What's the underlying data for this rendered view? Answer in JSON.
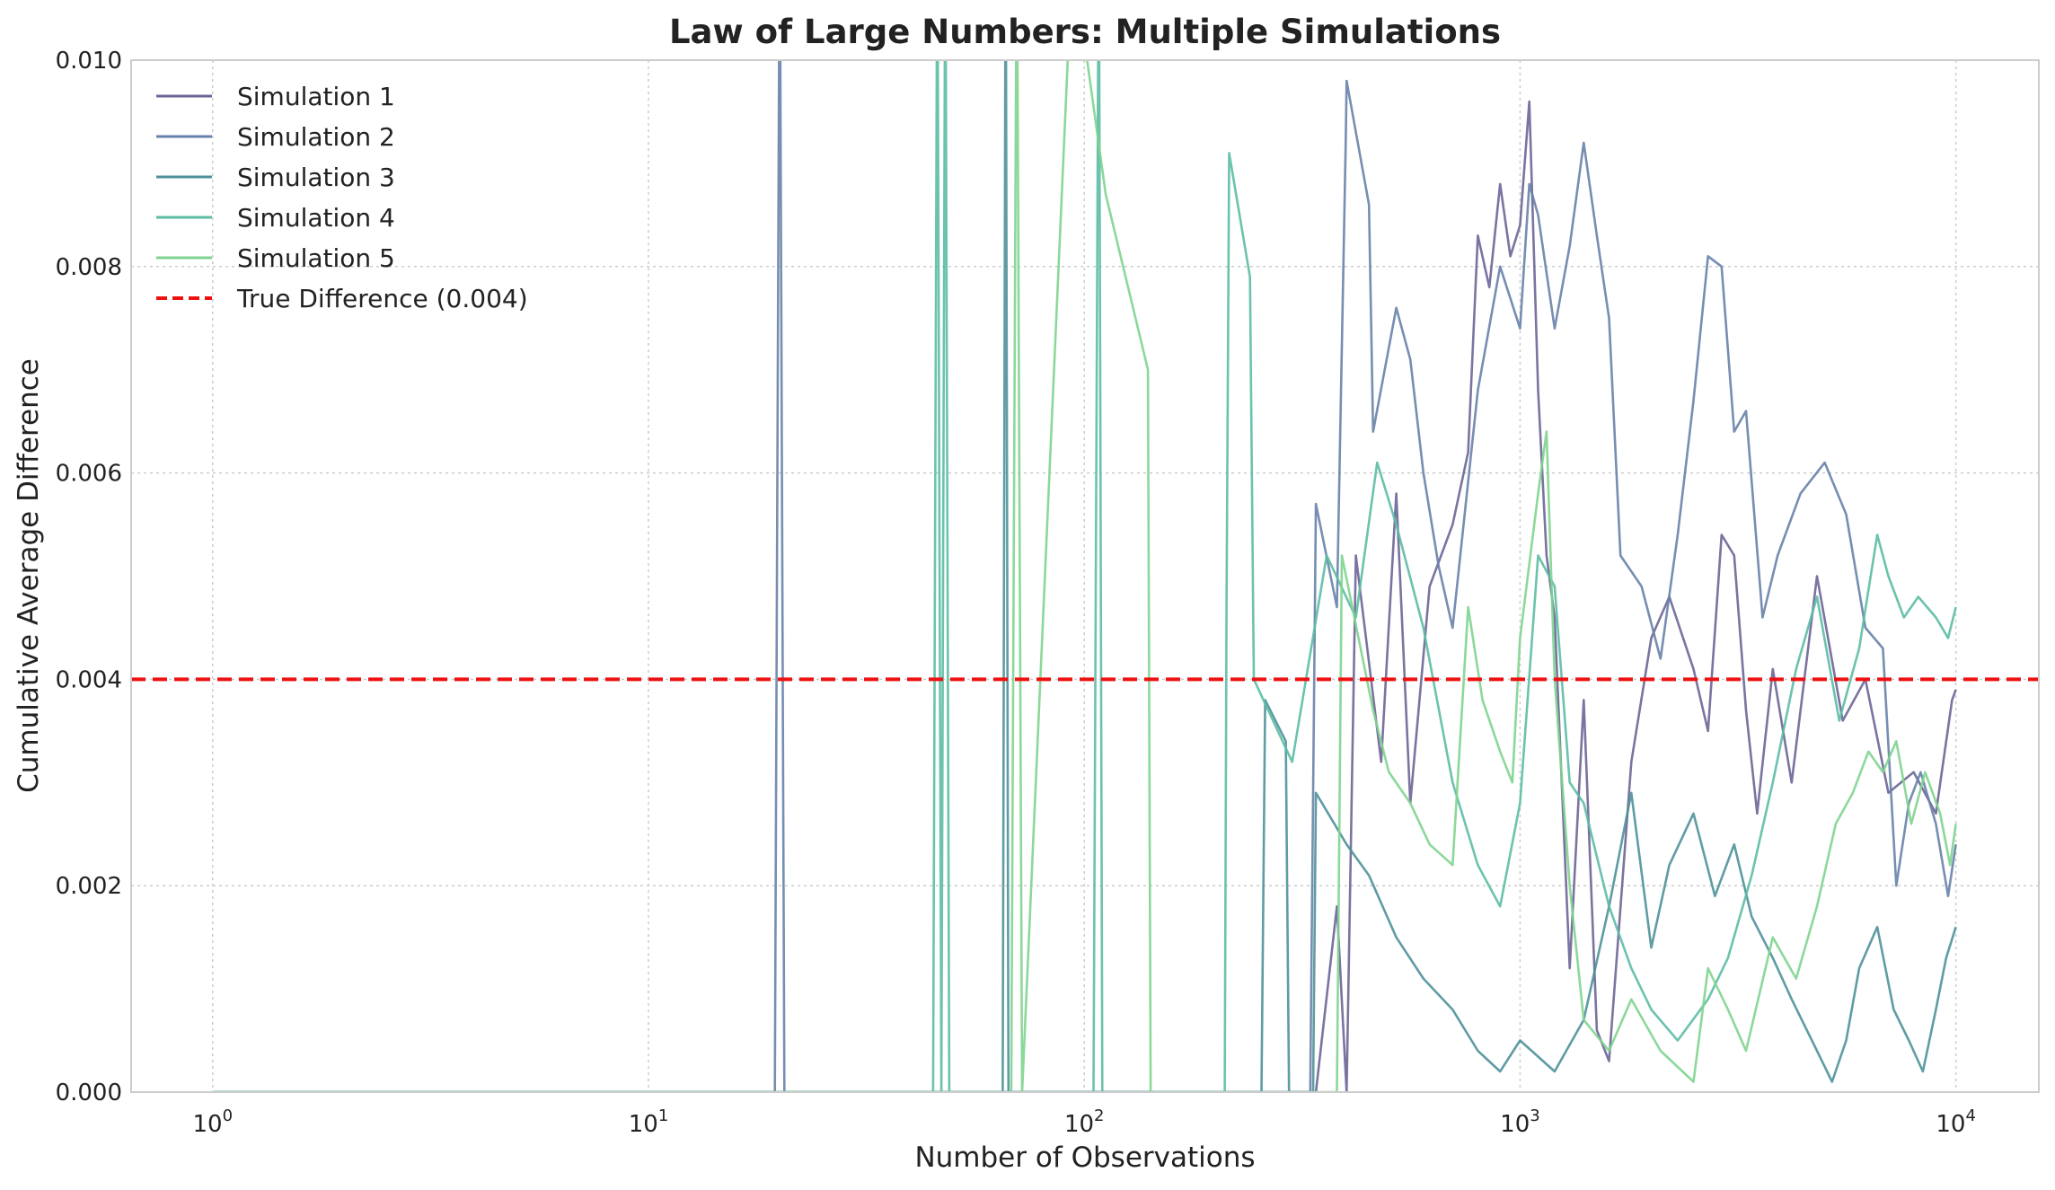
{
  "chart_data": {
    "type": "line",
    "title": "Law of Large Numbers: Multiple Simulations",
    "xlabel": "Number of Observations",
    "ylabel": "Cumulative Average Difference",
    "xscale": "log",
    "xlim": [
      0.65,
      15500
    ],
    "ylim": [
      0.0,
      0.01
    ],
    "x_ticks": [
      {
        "value": 1,
        "base": "10",
        "exp": "0"
      },
      {
        "value": 10,
        "base": "10",
        "exp": "1"
      },
      {
        "value": 100,
        "base": "10",
        "exp": "2"
      },
      {
        "value": 1000,
        "base": "10",
        "exp": "3"
      },
      {
        "value": 10000,
        "base": "10",
        "exp": "4"
      }
    ],
    "y_ticks": [
      {
        "value": 0.0,
        "label": "0.000"
      },
      {
        "value": 0.002,
        "label": "0.002"
      },
      {
        "value": 0.004,
        "label": "0.004"
      },
      {
        "value": 0.006,
        "label": "0.006"
      },
      {
        "value": 0.008,
        "label": "0.008"
      },
      {
        "value": 0.01,
        "label": "0.010"
      }
    ],
    "grid": true,
    "legend_position": "top-left",
    "reference_line": {
      "name": "True Difference (0.004)",
      "y": 0.004,
      "color": "#ee1111",
      "style": "dashed"
    },
    "series": [
      {
        "name": "Simulation 1",
        "color": "#6b6596",
        "points": [
          [
            1,
            0
          ],
          [
            340,
            0
          ],
          [
            380,
            0.0018
          ],
          [
            400,
            0
          ],
          [
            420,
            0.0052
          ],
          [
            480,
            0.0032
          ],
          [
            520,
            0.0058
          ],
          [
            560,
            0.0028
          ],
          [
            620,
            0.0049
          ],
          [
            700,
            0.0055
          ],
          [
            760,
            0.0062
          ],
          [
            800,
            0.0083
          ],
          [
            850,
            0.0078
          ],
          [
            900,
            0.0088
          ],
          [
            950,
            0.0081
          ],
          [
            1000,
            0.0084
          ],
          [
            1050,
            0.0096
          ],
          [
            1100,
            0.0068
          ],
          [
            1150,
            0.0052
          ],
          [
            1200,
            0.0046
          ],
          [
            1300,
            0.0012
          ],
          [
            1400,
            0.0038
          ],
          [
            1500,
            0.0006
          ],
          [
            1600,
            0.0003
          ],
          [
            1800,
            0.0032
          ],
          [
            2000,
            0.0044
          ],
          [
            2200,
            0.0048
          ],
          [
            2500,
            0.0041
          ],
          [
            2700,
            0.0035
          ],
          [
            2900,
            0.0054
          ],
          [
            3100,
            0.0052
          ],
          [
            3300,
            0.0037
          ],
          [
            3500,
            0.0027
          ],
          [
            3800,
            0.0041
          ],
          [
            4200,
            0.003
          ],
          [
            4800,
            0.005
          ],
          [
            5500,
            0.0036
          ],
          [
            6200,
            0.004
          ],
          [
            7000,
            0.0029
          ],
          [
            8000,
            0.0031
          ],
          [
            9000,
            0.0027
          ],
          [
            9800,
            0.0038
          ],
          [
            10000,
            0.0039
          ]
        ]
      },
      {
        "name": "Simulation 2",
        "color": "#6782a8",
        "points": [
          [
            1,
            0
          ],
          [
            19.5,
            0
          ],
          [
            20,
            0.0115
          ],
          [
            20.5,
            0
          ],
          [
            330,
            0
          ],
          [
            340,
            0.0057
          ],
          [
            380,
            0.0047
          ],
          [
            398,
            0.0092
          ],
          [
            400,
            0.0098
          ],
          [
            450,
            0.0086
          ],
          [
            460,
            0.0064
          ],
          [
            520,
            0.0076
          ],
          [
            560,
            0.0071
          ],
          [
            600,
            0.006
          ],
          [
            650,
            0.0051
          ],
          [
            700,
            0.0045
          ],
          [
            800,
            0.0068
          ],
          [
            900,
            0.008
          ],
          [
            1000,
            0.0074
          ],
          [
            1050,
            0.0088
          ],
          [
            1100,
            0.0085
          ],
          [
            1200,
            0.0074
          ],
          [
            1300,
            0.0082
          ],
          [
            1400,
            0.0092
          ],
          [
            1500,
            0.0083
          ],
          [
            1600,
            0.0075
          ],
          [
            1700,
            0.0052
          ],
          [
            1900,
            0.0049
          ],
          [
            2100,
            0.0042
          ],
          [
            2300,
            0.0054
          ],
          [
            2500,
            0.0067
          ],
          [
            2700,
            0.0081
          ],
          [
            2900,
            0.008
          ],
          [
            3100,
            0.0064
          ],
          [
            3300,
            0.0066
          ],
          [
            3600,
            0.0046
          ],
          [
            3900,
            0.0052
          ],
          [
            4400,
            0.0058
          ],
          [
            5000,
            0.0061
          ],
          [
            5600,
            0.0056
          ],
          [
            6200,
            0.0045
          ],
          [
            6800,
            0.0043
          ],
          [
            7300,
            0.002
          ],
          [
            7800,
            0.0028
          ],
          [
            8300,
            0.0031
          ],
          [
            9000,
            0.0026
          ],
          [
            9600,
            0.0019
          ],
          [
            10000,
            0.0024
          ]
        ]
      },
      {
        "name": "Simulation 3",
        "color": "#4e9199",
        "points": [
          [
            1,
            0
          ],
          [
            65,
            0
          ],
          [
            66,
            0.0115
          ],
          [
            67,
            0
          ],
          [
            255,
            0
          ],
          [
            260,
            0.0038
          ],
          [
            290,
            0.0034
          ],
          [
            295,
            0
          ],
          [
            335,
            0
          ],
          [
            340,
            0.0029
          ],
          [
            400,
            0.0024
          ],
          [
            450,
            0.0021
          ],
          [
            520,
            0.0015
          ],
          [
            600,
            0.0011
          ],
          [
            700,
            0.0008
          ],
          [
            800,
            0.0004
          ],
          [
            900,
            0.0002
          ],
          [
            1000,
            0.0005
          ],
          [
            1200,
            0.0002
          ],
          [
            1400,
            0.0007
          ],
          [
            1600,
            0.0018
          ],
          [
            1800,
            0.0029
          ],
          [
            2000,
            0.0014
          ],
          [
            2200,
            0.0022
          ],
          [
            2500,
            0.0027
          ],
          [
            2800,
            0.0019
          ],
          [
            3100,
            0.0024
          ],
          [
            3400,
            0.0017
          ],
          [
            3800,
            0.0013
          ],
          [
            4200,
            0.0009
          ],
          [
            4800,
            0.0004
          ],
          [
            5200,
            0.0001
          ],
          [
            5600,
            0.0005
          ],
          [
            6000,
            0.0012
          ],
          [
            6600,
            0.0016
          ],
          [
            7200,
            0.0008
          ],
          [
            7800,
            0.0005
          ],
          [
            8400,
            0.0002
          ],
          [
            9000,
            0.0008
          ],
          [
            9500,
            0.0013
          ],
          [
            10000,
            0.0016
          ]
        ]
      },
      {
        "name": "Simulation 4",
        "color": "#5bbda4",
        "points": [
          [
            1,
            0
          ],
          [
            45,
            0
          ],
          [
            46,
            0.0115
          ],
          [
            47,
            0
          ],
          [
            48,
            0.0115
          ],
          [
            49,
            0
          ],
          [
            105,
            0
          ],
          [
            108,
            0.0115
          ],
          [
            110,
            0
          ],
          [
            210,
            0
          ],
          [
            212,
            0.0047
          ],
          [
            215,
            0.0091
          ],
          [
            240,
            0.0079
          ],
          [
            245,
            0.004
          ],
          [
            300,
            0.0032
          ],
          [
            360,
            0.0052
          ],
          [
            420,
            0.0046
          ],
          [
            470,
            0.0061
          ],
          [
            520,
            0.0055
          ],
          [
            600,
            0.0045
          ],
          [
            700,
            0.003
          ],
          [
            800,
            0.0022
          ],
          [
            900,
            0.0018
          ],
          [
            1000,
            0.0028
          ],
          [
            1100,
            0.0052
          ],
          [
            1200,
            0.0049
          ],
          [
            1300,
            0.003
          ],
          [
            1400,
            0.0028
          ],
          [
            1600,
            0.0018
          ],
          [
            1800,
            0.0012
          ],
          [
            2000,
            0.0008
          ],
          [
            2300,
            0.0005
          ],
          [
            2700,
            0.0009
          ],
          [
            3000,
            0.0013
          ],
          [
            3400,
            0.0021
          ],
          [
            3800,
            0.003
          ],
          [
            4300,
            0.0041
          ],
          [
            4800,
            0.0048
          ],
          [
            5400,
            0.0036
          ],
          [
            6000,
            0.0043
          ],
          [
            6600,
            0.0054
          ],
          [
            7000,
            0.005
          ],
          [
            7600,
            0.0046
          ],
          [
            8200,
            0.0048
          ],
          [
            9000,
            0.0046
          ],
          [
            9600,
            0.0044
          ],
          [
            10000,
            0.0047
          ]
        ]
      },
      {
        "name": "Simulation 5",
        "color": "#7fd48f",
        "points": [
          [
            1,
            0
          ],
          [
            68,
            0
          ],
          [
            70,
            0.0115
          ],
          [
            72,
            0
          ],
          [
            95,
            0.0115
          ],
          [
            100,
            0.0102
          ],
          [
            112,
            0.0087
          ],
          [
            140,
            0.007
          ],
          [
            142,
            0
          ],
          [
            380,
            0
          ],
          [
            390,
            0.0052
          ],
          [
            460,
            0.0037
          ],
          [
            500,
            0.0031
          ],
          [
            560,
            0.0028
          ],
          [
            620,
            0.0024
          ],
          [
            700,
            0.0022
          ],
          [
            760,
            0.0047
          ],
          [
            820,
            0.0038
          ],
          [
            900,
            0.0033
          ],
          [
            960,
            0.003
          ],
          [
            1000,
            0.0044
          ],
          [
            1100,
            0.0058
          ],
          [
            1150,
            0.0064
          ],
          [
            1200,
            0.004
          ],
          [
            1300,
            0.002
          ],
          [
            1400,
            0.0007
          ],
          [
            1600,
            0.0004
          ],
          [
            1800,
            0.0009
          ],
          [
            2100,
            0.0004
          ],
          [
            2500,
            0.0001
          ],
          [
            2700,
            0.0012
          ],
          [
            3000,
            0.0008
          ],
          [
            3300,
            0.0004
          ],
          [
            3800,
            0.0015
          ],
          [
            4300,
            0.0011
          ],
          [
            4800,
            0.0018
          ],
          [
            5300,
            0.0026
          ],
          [
            5800,
            0.0029
          ],
          [
            6300,
            0.0033
          ],
          [
            6800,
            0.0031
          ],
          [
            7300,
            0.0034
          ],
          [
            7900,
            0.0026
          ],
          [
            8500,
            0.0031
          ],
          [
            9200,
            0.0027
          ],
          [
            9700,
            0.0022
          ],
          [
            10000,
            0.0026
          ]
        ]
      }
    ]
  }
}
